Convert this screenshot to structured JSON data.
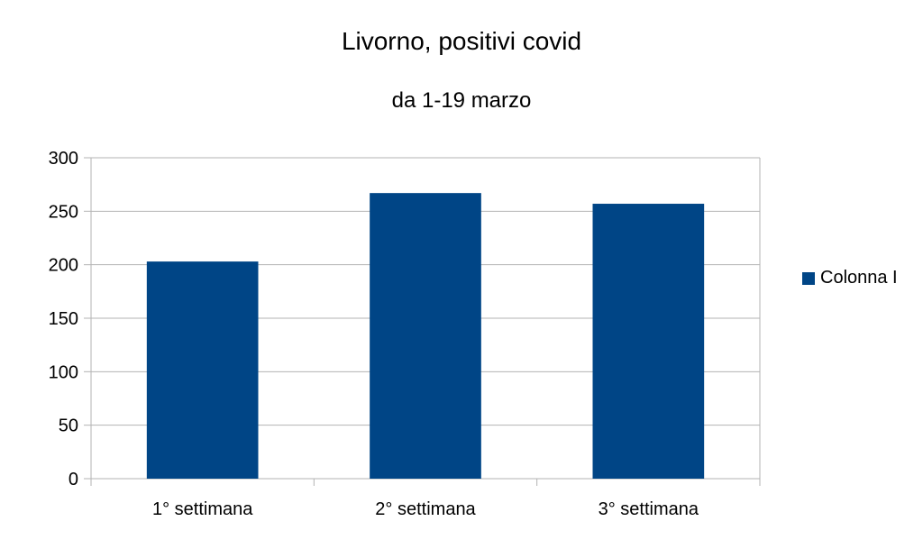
{
  "chart_data": {
    "type": "bar",
    "title": "Livorno, positivi covid",
    "subtitle": "da 1-19 marzo",
    "categories": [
      "1° settimana",
      "2° settimana",
      "3° settimana"
    ],
    "series": [
      {
        "name": "Colonna I",
        "values": [
          203,
          267,
          257
        ],
        "color": "#004586"
      }
    ],
    "ylim": [
      0,
      300
    ],
    "yticks": [
      0,
      50,
      100,
      150,
      200,
      250,
      300
    ],
    "xlabel": "",
    "ylabel": "",
    "grid": true,
    "legend_position": "right"
  }
}
